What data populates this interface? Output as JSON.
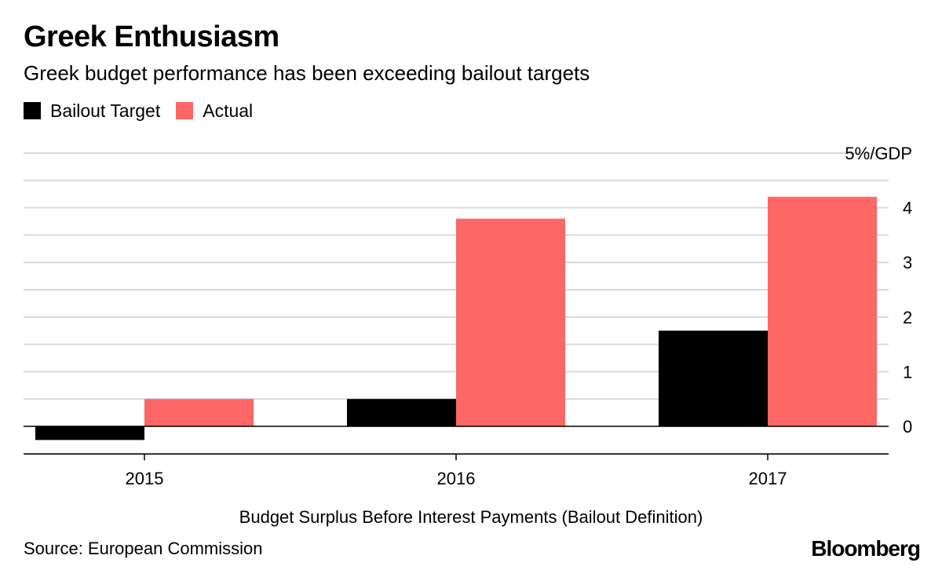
{
  "header": {
    "title": "Greek Enthusiasm",
    "subtitle": "Greek budget performance has been exceeding bailout targets"
  },
  "footer": {
    "source": "Source: European Commission",
    "logo": "Bloomberg"
  },
  "chart_data": {
    "type": "bar",
    "title": "Greek Enthusiasm",
    "subtitle": "Greek budget performance has been exceeding bailout targets",
    "xlabel": "Budget Surplus Before Interest Payments (Bailout Definition)",
    "ylabel": "",
    "unit_label": "5%/GDP",
    "categories": [
      "2015",
      "2016",
      "2017"
    ],
    "series": [
      {
        "name": "Bailout Target",
        "color": "#000000",
        "values": [
          -0.25,
          0.5,
          1.75
        ]
      },
      {
        "name": "Actual",
        "color": "#ff6666",
        "values": [
          0.5,
          3.8,
          4.2
        ]
      }
    ],
    "ylim": [
      -0.5,
      5
    ],
    "yticks": [
      0,
      1,
      2,
      3,
      4
    ],
    "grid": true,
    "axis_side": "right",
    "legend_position": "top-left"
  }
}
